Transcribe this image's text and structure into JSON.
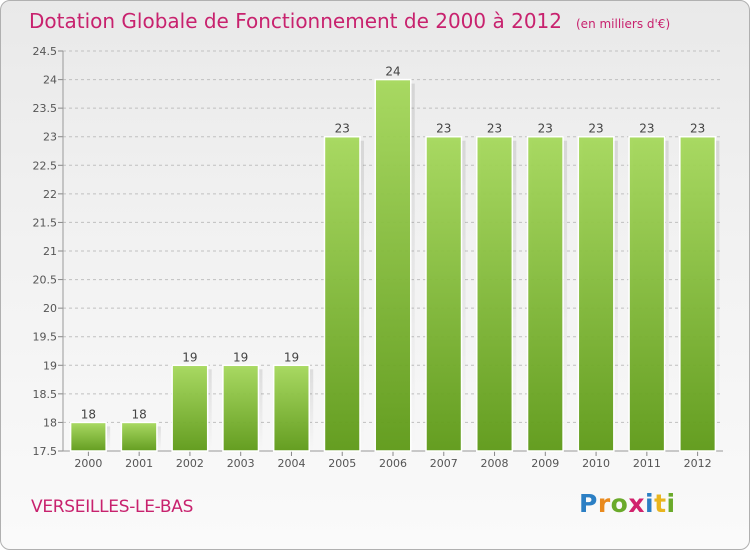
{
  "header": {
    "title": "Dotation Globale de Fonctionnement de 2000 à 2012",
    "subtitle": "(en milliers d'€)"
  },
  "footer": {
    "city": "VERSEILLES-LE-BAS",
    "logo_text": "Proxiti"
  },
  "colors": {
    "title": "#c8226e",
    "bar_light": "#9dd152",
    "bar_dark": "#5f9c17",
    "grid": "#c0c0c0"
  },
  "chart_data": {
    "type": "bar",
    "title": "Dotation Globale de Fonctionnement de 2000 à 2012",
    "xlabel": "",
    "ylabel": "",
    "categories": [
      "2000",
      "2001",
      "2002",
      "2003",
      "2004",
      "2005",
      "2006",
      "2007",
      "2008",
      "2009",
      "2010",
      "2011",
      "2012"
    ],
    "values": [
      18,
      18,
      19,
      19,
      19,
      23,
      24,
      23,
      23,
      23,
      23,
      23,
      23
    ],
    "ylim": [
      17.5,
      24.5
    ],
    "yticks": [
      "17.5",
      "18",
      "18.5",
      "19",
      "19.5",
      "20",
      "20.5",
      "21",
      "21.5",
      "22",
      "22.5",
      "23",
      "23.5",
      "24",
      "24.5"
    ],
    "grid": true
  }
}
